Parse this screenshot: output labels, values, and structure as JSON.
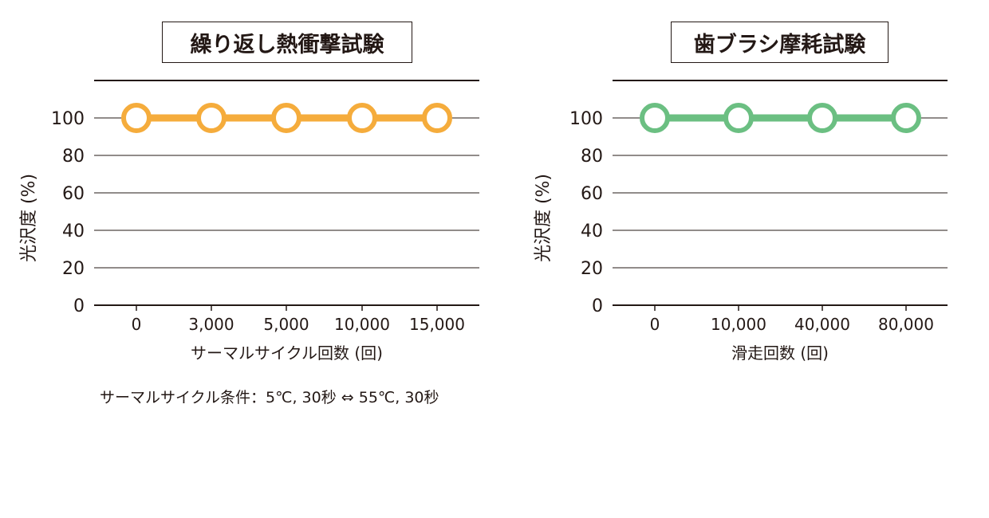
{
  "note": "サーマルサイクル条件：5℃, 30秒 ⇔ 55℃, 30秒",
  "chart_data": [
    {
      "type": "line",
      "title": "繰り返し熱衝撃試験",
      "xlabel": "サーマルサイクル回数 (回)",
      "ylabel": "光沢度 (%)",
      "categories": [
        "0",
        "3,000",
        "5,000",
        "10,000",
        "15,000"
      ],
      "series": [
        {
          "values": [
            100,
            100,
            100,
            100,
            100
          ],
          "color": "#F5AC3C"
        }
      ],
      "ylim": [
        0,
        100
      ],
      "yticks": [
        0,
        20,
        40,
        60,
        80,
        100
      ],
      "grid": true,
      "marker": "open-circle"
    },
    {
      "type": "line",
      "title": "歯ブラシ摩耗試験",
      "xlabel": "滑走回数 (回)",
      "ylabel": "光沢度 (%)",
      "categories": [
        "0",
        "10,000",
        "40,000",
        "80,000"
      ],
      "series": [
        {
          "values": [
            100,
            100,
            100,
            100
          ],
          "color": "#6BBF82"
        }
      ],
      "ylim": [
        0,
        100
      ],
      "yticks": [
        0,
        20,
        40,
        60,
        80,
        100
      ],
      "grid": true,
      "marker": "open-circle"
    }
  ]
}
